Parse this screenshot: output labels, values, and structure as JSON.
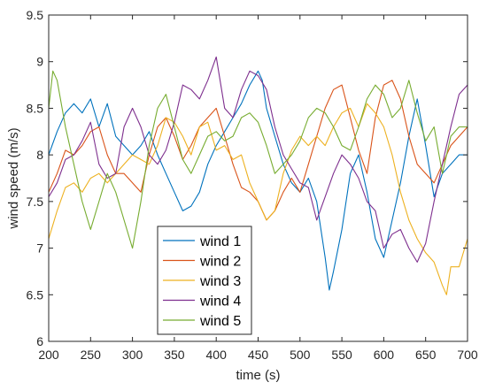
{
  "chart_data": {
    "type": "line",
    "title": "",
    "xlabel": "time (s)",
    "ylabel": "wind speed (m/s)",
    "xlim": [
      200,
      700
    ],
    "ylim": [
      6,
      9.5
    ],
    "xticks": [
      "200",
      "250",
      "300",
      "350",
      "400",
      "450",
      "500",
      "550",
      "600",
      "650",
      "700"
    ],
    "yticks": [
      "6",
      "6.5",
      "7",
      "7.5",
      "8",
      "8.5",
      "9",
      "9.5"
    ],
    "grid": false,
    "legend_position": "lower-left",
    "series": [
      {
        "name": "wind 1",
        "color": "#0072BD",
        "x": [
          200,
          210,
          220,
          230,
          240,
          250,
          260,
          270,
          280,
          290,
          300,
          310,
          320,
          330,
          340,
          350,
          360,
          370,
          380,
          390,
          400,
          410,
          420,
          430,
          440,
          450,
          455,
          460,
          470,
          480,
          490,
          500,
          510,
          520,
          530,
          535,
          540,
          550,
          560,
          570,
          580,
          590,
          600,
          610,
          620,
          630,
          640,
          650,
          660,
          670,
          680,
          690,
          700
        ],
        "y": [
          8.0,
          8.25,
          8.45,
          8.55,
          8.45,
          8.6,
          8.3,
          8.55,
          8.2,
          8.1,
          8.0,
          8.1,
          8.25,
          8.0,
          7.8,
          7.6,
          7.4,
          7.45,
          7.6,
          7.9,
          8.1,
          8.25,
          8.4,
          8.55,
          8.75,
          8.9,
          8.8,
          8.5,
          8.2,
          7.9,
          7.7,
          7.6,
          7.75,
          7.5,
          6.9,
          6.55,
          6.75,
          7.2,
          7.8,
          8.0,
          7.6,
          7.1,
          6.9,
          7.3,
          7.7,
          8.2,
          8.6,
          8.1,
          7.55,
          7.8,
          7.9,
          8.0,
          8.0
        ]
      },
      {
        "name": "wind 2",
        "color": "#D95319",
        "x": [
          200,
          210,
          220,
          230,
          240,
          250,
          260,
          270,
          280,
          290,
          300,
          310,
          320,
          330,
          340,
          350,
          360,
          370,
          380,
          390,
          400,
          410,
          420,
          430,
          440,
          450,
          460,
          470,
          480,
          490,
          500,
          510,
          520,
          530,
          540,
          550,
          560,
          570,
          580,
          590,
          600,
          610,
          620,
          630,
          640,
          650,
          660,
          670,
          680,
          690,
          700
        ],
        "y": [
          7.6,
          7.8,
          8.05,
          8.0,
          8.1,
          8.25,
          8.3,
          8.0,
          7.8,
          7.8,
          7.7,
          7.6,
          8.0,
          8.3,
          8.4,
          8.2,
          7.95,
          8.1,
          8.3,
          8.4,
          8.5,
          8.2,
          7.9,
          7.65,
          7.6,
          7.5,
          7.3,
          7.4,
          7.6,
          7.75,
          7.6,
          7.9,
          8.2,
          8.5,
          8.7,
          8.75,
          8.4,
          8.05,
          7.8,
          8.4,
          8.75,
          8.8,
          8.6,
          8.2,
          7.9,
          7.8,
          7.7,
          7.9,
          8.1,
          8.2,
          8.3
        ]
      },
      {
        "name": "wind 3",
        "color": "#EDB120",
        "x": [
          200,
          210,
          220,
          230,
          240,
          250,
          260,
          270,
          280,
          290,
          300,
          310,
          320,
          330,
          340,
          350,
          360,
          370,
          380,
          390,
          400,
          410,
          420,
          430,
          440,
          450,
          460,
          470,
          480,
          490,
          500,
          510,
          520,
          530,
          540,
          550,
          560,
          570,
          580,
          590,
          600,
          610,
          620,
          630,
          640,
          650,
          660,
          670,
          675,
          680,
          690,
          700
        ],
        "y": [
          7.1,
          7.4,
          7.65,
          7.7,
          7.6,
          7.75,
          7.8,
          7.7,
          7.8,
          7.9,
          8.0,
          7.95,
          7.9,
          8.1,
          8.4,
          8.35,
          8.2,
          8.0,
          8.3,
          8.35,
          8.05,
          8.1,
          7.95,
          8.0,
          7.7,
          7.5,
          7.3,
          7.4,
          7.8,
          8.05,
          8.2,
          8.1,
          8.2,
          8.1,
          8.3,
          8.45,
          8.5,
          8.3,
          8.55,
          8.45,
          8.3,
          8.0,
          7.6,
          7.3,
          7.1,
          6.95,
          6.85,
          6.6,
          6.5,
          6.8,
          6.8,
          7.1
        ]
      },
      {
        "name": "wind 4",
        "color": "#7E2F8E",
        "x": [
          200,
          210,
          220,
          230,
          240,
          250,
          260,
          270,
          280,
          290,
          300,
          310,
          320,
          330,
          340,
          350,
          360,
          370,
          380,
          390,
          400,
          410,
          420,
          430,
          440,
          450,
          460,
          470,
          480,
          490,
          500,
          510,
          520,
          530,
          540,
          550,
          560,
          570,
          580,
          590,
          600,
          610,
          620,
          630,
          640,
          650,
          660,
          670,
          680,
          690,
          700
        ],
        "y": [
          7.55,
          7.7,
          7.95,
          8.0,
          8.15,
          8.35,
          7.9,
          7.75,
          7.8,
          8.3,
          8.5,
          8.3,
          8.0,
          7.9,
          8.05,
          8.35,
          8.75,
          8.7,
          8.6,
          8.8,
          9.05,
          8.5,
          8.4,
          8.7,
          8.9,
          8.85,
          8.7,
          8.3,
          8.0,
          7.85,
          7.7,
          7.65,
          7.3,
          7.55,
          7.8,
          8.0,
          7.9,
          7.75,
          7.5,
          7.4,
          7.0,
          7.15,
          7.2,
          7.0,
          6.85,
          7.05,
          7.5,
          7.9,
          8.3,
          8.65,
          8.75
        ]
      },
      {
        "name": "wind 5",
        "color": "#77AC30",
        "x": [
          200,
          205,
          210,
          220,
          230,
          240,
          250,
          260,
          270,
          280,
          290,
          300,
          310,
          320,
          330,
          340,
          350,
          360,
          370,
          380,
          390,
          400,
          410,
          420,
          430,
          440,
          450,
          460,
          470,
          480,
          490,
          500,
          510,
          520,
          530,
          540,
          550,
          560,
          570,
          580,
          590,
          600,
          610,
          620,
          630,
          640,
          650,
          660,
          670,
          680,
          690,
          700
        ],
        "y": [
          8.5,
          8.9,
          8.8,
          8.3,
          7.9,
          7.5,
          7.2,
          7.5,
          7.8,
          7.6,
          7.3,
          7.0,
          7.5,
          8.1,
          8.5,
          8.65,
          8.3,
          7.95,
          7.8,
          8.0,
          8.2,
          8.25,
          8.15,
          8.2,
          8.4,
          8.45,
          8.35,
          8.1,
          7.8,
          7.9,
          8.0,
          8.15,
          8.4,
          8.5,
          8.45,
          8.3,
          8.1,
          8.05,
          8.3,
          8.6,
          8.75,
          8.65,
          8.4,
          8.5,
          8.8,
          8.45,
          8.15,
          8.3,
          7.8,
          8.2,
          8.3,
          8.3
        ]
      }
    ]
  }
}
